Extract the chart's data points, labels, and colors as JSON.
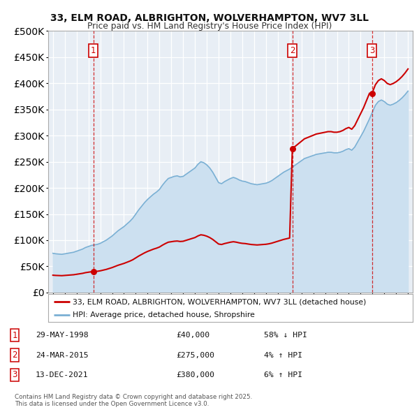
{
  "title_line1": "33, ELM ROAD, ALBRIGHTON, WOLVERHAMPTON, WV7 3LL",
  "title_line2": "Price paid vs. HM Land Registry's House Price Index (HPI)",
  "sale_dates_float": [
    1998.41,
    2015.23,
    2021.95
  ],
  "sale_prices": [
    40000,
    275000,
    380000
  ],
  "sale_labels": [
    "1",
    "2",
    "3"
  ],
  "sale_info": [
    {
      "label": "1",
      "date": "29-MAY-1998",
      "price": "£40,000",
      "hpi": "58% ↓ HPI"
    },
    {
      "label": "2",
      "date": "24-MAR-2015",
      "price": "£275,000",
      "hpi": "4% ↑ HPI"
    },
    {
      "label": "3",
      "date": "13-DEC-2021",
      "price": "£380,000",
      "hpi": "6% ↑ HPI"
    }
  ],
  "hpi_data": [
    [
      1995.0,
      75000
    ],
    [
      1995.25,
      74000
    ],
    [
      1995.5,
      73500
    ],
    [
      1995.75,
      73000
    ],
    [
      1996.0,
      74000
    ],
    [
      1996.25,
      75000
    ],
    [
      1996.5,
      76000
    ],
    [
      1996.75,
      77000
    ],
    [
      1997.0,
      79000
    ],
    [
      1997.25,
      81000
    ],
    [
      1997.5,
      83000
    ],
    [
      1997.75,
      86000
    ],
    [
      1998.0,
      88000
    ],
    [
      1998.25,
      90000
    ],
    [
      1998.5,
      91000
    ],
    [
      1998.75,
      92000
    ],
    [
      1999.0,
      94000
    ],
    [
      1999.25,
      97000
    ],
    [
      1999.5,
      100000
    ],
    [
      1999.75,
      104000
    ],
    [
      2000.0,
      108000
    ],
    [
      2000.25,
      113000
    ],
    [
      2000.5,
      118000
    ],
    [
      2000.75,
      122000
    ],
    [
      2001.0,
      126000
    ],
    [
      2001.25,
      131000
    ],
    [
      2001.5,
      136000
    ],
    [
      2001.75,
      142000
    ],
    [
      2002.0,
      150000
    ],
    [
      2002.25,
      158000
    ],
    [
      2002.5,
      165000
    ],
    [
      2002.75,
      172000
    ],
    [
      2003.0,
      178000
    ],
    [
      2003.25,
      183000
    ],
    [
      2003.5,
      188000
    ],
    [
      2003.75,
      192000
    ],
    [
      2004.0,
      197000
    ],
    [
      2004.25,
      205000
    ],
    [
      2004.5,
      212000
    ],
    [
      2004.75,
      218000
    ],
    [
      2005.0,
      220000
    ],
    [
      2005.25,
      222000
    ],
    [
      2005.5,
      223000
    ],
    [
      2005.75,
      221000
    ],
    [
      2006.0,
      222000
    ],
    [
      2006.25,
      226000
    ],
    [
      2006.5,
      230000
    ],
    [
      2006.75,
      234000
    ],
    [
      2007.0,
      238000
    ],
    [
      2007.25,
      245000
    ],
    [
      2007.5,
      250000
    ],
    [
      2007.75,
      248000
    ],
    [
      2008.0,
      244000
    ],
    [
      2008.25,
      238000
    ],
    [
      2008.5,
      230000
    ],
    [
      2008.75,
      220000
    ],
    [
      2009.0,
      210000
    ],
    [
      2009.25,
      208000
    ],
    [
      2009.5,
      212000
    ],
    [
      2009.75,
      215000
    ],
    [
      2010.0,
      218000
    ],
    [
      2010.25,
      220000
    ],
    [
      2010.5,
      218000
    ],
    [
      2010.75,
      215000
    ],
    [
      2011.0,
      213000
    ],
    [
      2011.25,
      212000
    ],
    [
      2011.5,
      210000
    ],
    [
      2011.75,
      208000
    ],
    [
      2012.0,
      207000
    ],
    [
      2012.25,
      206000
    ],
    [
      2012.5,
      207000
    ],
    [
      2012.75,
      208000
    ],
    [
      2013.0,
      209000
    ],
    [
      2013.25,
      211000
    ],
    [
      2013.5,
      214000
    ],
    [
      2013.75,
      218000
    ],
    [
      2014.0,
      222000
    ],
    [
      2014.25,
      226000
    ],
    [
      2014.5,
      230000
    ],
    [
      2014.75,
      233000
    ],
    [
      2015.0,
      236000
    ],
    [
      2015.25,
      240000
    ],
    [
      2015.5,
      244000
    ],
    [
      2015.75,
      248000
    ],
    [
      2016.0,
      252000
    ],
    [
      2016.25,
      256000
    ],
    [
      2016.5,
      258000
    ],
    [
      2016.75,
      260000
    ],
    [
      2017.0,
      262000
    ],
    [
      2017.25,
      264000
    ],
    [
      2017.5,
      265000
    ],
    [
      2017.75,
      266000
    ],
    [
      2018.0,
      267000
    ],
    [
      2018.25,
      268000
    ],
    [
      2018.5,
      268000
    ],
    [
      2018.75,
      267000
    ],
    [
      2019.0,
      267000
    ],
    [
      2019.25,
      268000
    ],
    [
      2019.5,
      270000
    ],
    [
      2019.75,
      273000
    ],
    [
      2020.0,
      275000
    ],
    [
      2020.25,
      272000
    ],
    [
      2020.5,
      278000
    ],
    [
      2020.75,
      288000
    ],
    [
      2021.0,
      298000
    ],
    [
      2021.25,
      308000
    ],
    [
      2021.5,
      320000
    ],
    [
      2021.75,
      332000
    ],
    [
      2022.0,
      345000
    ],
    [
      2022.25,
      358000
    ],
    [
      2022.5,
      365000
    ],
    [
      2022.75,
      368000
    ],
    [
      2023.0,
      365000
    ],
    [
      2023.25,
      360000
    ],
    [
      2023.5,
      358000
    ],
    [
      2023.75,
      360000
    ],
    [
      2024.0,
      363000
    ],
    [
      2024.25,
      367000
    ],
    [
      2024.5,
      372000
    ],
    [
      2024.75,
      378000
    ],
    [
      2025.0,
      385000
    ]
  ],
  "sale_line_color": "#cc0000",
  "hpi_line_color": "#7ab0d4",
  "hpi_fill_color": "#cce0f0",
  "background_color": "#e8eef5",
  "ylim": [
    0,
    500000
  ],
  "xlim_start": 1994.6,
  "xlim_end": 2025.4,
  "legend_label_sale": "33, ELM ROAD, ALBRIGHTON, WOLVERHAMPTON, WV7 3LL (detached house)",
  "legend_label_hpi": "HPI: Average price, detached house, Shropshire",
  "footer": "Contains HM Land Registry data © Crown copyright and database right 2025.\nThis data is licensed under the Open Government Licence v3.0."
}
